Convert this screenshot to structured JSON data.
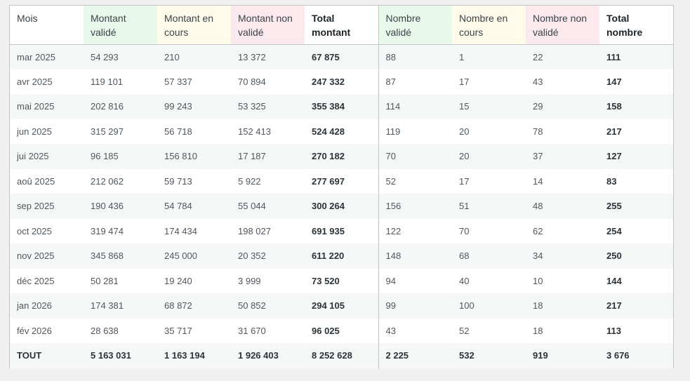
{
  "table": {
    "headers": [
      "Mois",
      "Montant validé",
      "Montant en cours",
      "Montant non validé",
      "Total montant",
      "Nombre validé",
      "Nombre en cours",
      "Nombre non validé",
      "Total nombre"
    ],
    "rows": [
      [
        "mar 2025",
        "54 293",
        "210",
        "13 372",
        "67 875",
        "88",
        "1",
        "22",
        "111"
      ],
      [
        "avr 2025",
        "119 101",
        "57 337",
        "70 894",
        "247 332",
        "87",
        "17",
        "43",
        "147"
      ],
      [
        "mai 2025",
        "202 816",
        "99 243",
        "53 325",
        "355 384",
        "114",
        "15",
        "29",
        "158"
      ],
      [
        "jun 2025",
        "315 297",
        "56 718",
        "152 413",
        "524 428",
        "119",
        "20",
        "78",
        "217"
      ],
      [
        "jui 2025",
        "96 185",
        "156 810",
        "17 187",
        "270 182",
        "70",
        "20",
        "37",
        "127"
      ],
      [
        "aoû 2025",
        "212 062",
        "59 713",
        "5 922",
        "277 697",
        "52",
        "17",
        "14",
        "83"
      ],
      [
        "sep 2025",
        "190 436",
        "54 784",
        "55 044",
        "300 264",
        "156",
        "51",
        "48",
        "255"
      ],
      [
        "oct 2025",
        "319 474",
        "174 434",
        "198 027",
        "691 935",
        "122",
        "70",
        "62",
        "254"
      ],
      [
        "nov 2025",
        "345 868",
        "245 000",
        "20 352",
        "611 220",
        "148",
        "68",
        "34",
        "250"
      ],
      [
        "déc 2025",
        "50 281",
        "19 240",
        "3 999",
        "73 520",
        "94",
        "40",
        "10",
        "144"
      ],
      [
        "jan 2026",
        "174 381",
        "68 872",
        "50 852",
        "294 105",
        "99",
        "100",
        "18",
        "217"
      ],
      [
        "fév 2026",
        "28 638",
        "35 717",
        "31 670",
        "96 025",
        "43",
        "52",
        "18",
        "113"
      ]
    ],
    "total_row": [
      "TOUT",
      "5 163 031",
      "1 163 194",
      "1 926 403",
      "8 252 628",
      "2 225",
      "532",
      "919",
      "3 676"
    ]
  },
  "colors": {
    "validated_header": "#e8f8ea",
    "in_progress_header": "#fefbea",
    "not_validated_header": "#fbe9ee",
    "stripe": "#f6f7f7",
    "border": "#c3c4c7",
    "page_background": "#f0f0f1"
  }
}
